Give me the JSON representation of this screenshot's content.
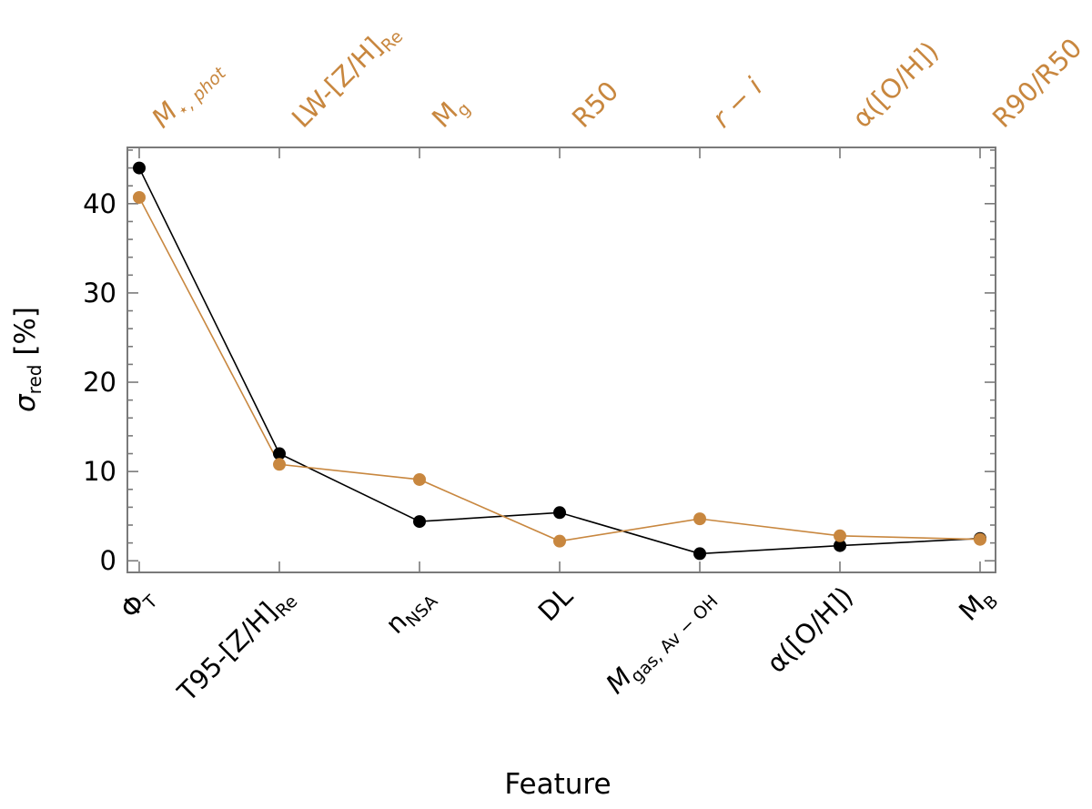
{
  "colors": {
    "black_series": "#000000",
    "orange_series": "#c8873f",
    "frame": "#7a7a7a"
  },
  "chart_data": {
    "type": "line",
    "xlabel": "Feature",
    "ylabel": "σ",
    "ylabel_sub": "red",
    "ylabel_suffix": " [%]",
    "ylim": [
      -1.3,
      46.3
    ],
    "yticks": [
      0,
      10,
      20,
      30,
      40
    ],
    "grid": false,
    "bottom_tick_labels": [
      {
        "main": "Φ",
        "sub": "T"
      },
      {
        "main": "T95-[Z/H]",
        "sub": "Re"
      },
      {
        "main": "n",
        "sub": "NSA"
      },
      {
        "main": "DL",
        "sub": ""
      },
      {
        "main": "M",
        "sub": "gas, Av − OH",
        "italic_main": true
      },
      {
        "main": "α([O/H])",
        "sub": ""
      },
      {
        "main": "M",
        "sub": "B"
      }
    ],
    "top_tick_labels": [
      {
        "main": "M",
        "sub": "⋆, phot",
        "italic": true
      },
      {
        "main": "LW-[Z/H]",
        "sub": "Re"
      },
      {
        "main": "M",
        "sub": "g"
      },
      {
        "main": "R50",
        "sub": ""
      },
      {
        "main": "r − i",
        "sub": "",
        "italic": true
      },
      {
        "main": "α([O/H])",
        "sub": ""
      },
      {
        "main": "R90/R50",
        "sub": ""
      }
    ],
    "series": [
      {
        "color": "#000000",
        "values": [
          44.0,
          12.0,
          4.4,
          5.4,
          0.8,
          1.7,
          2.5
        ]
      },
      {
        "color": "#c8873f",
        "values": [
          40.7,
          10.8,
          9.1,
          2.2,
          4.7,
          2.8,
          2.4
        ]
      }
    ]
  }
}
